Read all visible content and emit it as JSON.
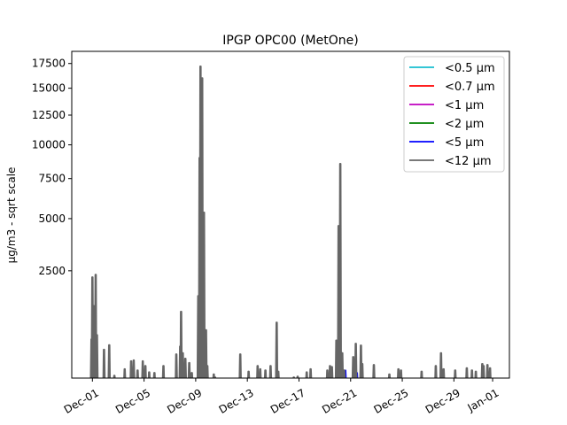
{
  "chart_data": {
    "type": "line",
    "title": "IPGP OPC00 (MetOne)",
    "xlabel": "",
    "ylabel": "µg/m3 - sqrt scale",
    "yscale": "sqrt",
    "ylim": [
      55,
      18800
    ],
    "xlim_days_from_dec01": [
      -1.6,
      32.3
    ],
    "x_unit": "days since Dec-01",
    "x_ticks": [
      {
        "day": 0,
        "label": "Dec-01"
      },
      {
        "day": 4,
        "label": "Dec-05"
      },
      {
        "day": 8,
        "label": "Dec-09"
      },
      {
        "day": 12,
        "label": "Dec-13"
      },
      {
        "day": 16,
        "label": "Dec-17"
      },
      {
        "day": 20,
        "label": "Dec-21"
      },
      {
        "day": 24,
        "label": "Dec-25"
      },
      {
        "day": 28,
        "label": "Dec-29"
      },
      {
        "day": 31,
        "label": "Jan-01"
      }
    ],
    "y_ticks": [
      {
        "value": 2500,
        "label": "2500"
      },
      {
        "value": 5000,
        "label": "5000"
      },
      {
        "value": 7500,
        "label": "7500"
      },
      {
        "value": 10000,
        "label": "10000"
      },
      {
        "value": 12500,
        "label": "12500"
      },
      {
        "value": 15000,
        "label": "15000"
      },
      {
        "value": 17500,
        "label": "17500"
      }
    ],
    "legend_position": "top-right",
    "baseline": 30,
    "series": [
      {
        "name": "<0.5 µm",
        "color": "#17becf",
        "spikes": [
          [
            8.4,
            60
          ]
        ]
      },
      {
        "name": "<0.7 µm",
        "color": "#ff0000",
        "spikes": [
          [
            8.4,
            70
          ]
        ]
      },
      {
        "name": "<1 µm",
        "color": "#bf00bf",
        "spikes": [
          [
            8.4,
            90
          ]
        ]
      },
      {
        "name": "<2 µm",
        "color": "#008000",
        "spikes": [
          [
            8.4,
            200
          ],
          [
            8.6,
            120
          ]
        ]
      },
      {
        "name": "<5 µm",
        "color": "#0000ff",
        "spikes": [
          [
            6.9,
            120
          ],
          [
            7.0,
            260
          ],
          [
            8.4,
            900
          ],
          [
            8.55,
            500
          ],
          [
            19.6,
            110
          ],
          [
            20.5,
            90
          ]
        ]
      },
      {
        "name": "<12 µm",
        "color": "#666666",
        "spikes": [
          [
            -0.07,
            520
          ],
          [
            0.0,
            2250
          ],
          [
            0.1,
            1300
          ],
          [
            0.25,
            2350
          ],
          [
            0.35,
            600
          ],
          [
            0.9,
            350
          ],
          [
            1.3,
            420
          ],
          [
            1.7,
            70
          ],
          [
            2.5,
            120
          ],
          [
            3.0,
            200
          ],
          [
            3.2,
            210
          ],
          [
            3.5,
            110
          ],
          [
            3.9,
            200
          ],
          [
            4.1,
            150
          ],
          [
            4.4,
            95
          ],
          [
            4.8,
            90
          ],
          [
            5.5,
            150
          ],
          [
            6.5,
            285
          ],
          [
            6.8,
            400
          ],
          [
            6.87,
            1140
          ],
          [
            7.0,
            300
          ],
          [
            7.2,
            230
          ],
          [
            7.5,
            180
          ],
          [
            7.7,
            90
          ],
          [
            8.2,
            1600
          ],
          [
            8.3,
            9000
          ],
          [
            8.37,
            17200
          ],
          [
            8.5,
            16000
          ],
          [
            8.64,
            5350
          ],
          [
            8.8,
            700
          ],
          [
            8.9,
            150
          ],
          [
            9.4,
            80
          ],
          [
            9.5,
            60
          ],
          [
            11.45,
            285
          ],
          [
            12.1,
            100
          ],
          [
            12.8,
            150
          ],
          [
            13.0,
            120
          ],
          [
            13.4,
            110
          ],
          [
            13.8,
            150
          ],
          [
            14.27,
            870
          ],
          [
            14.4,
            100
          ],
          [
            15.6,
            60
          ],
          [
            15.9,
            65
          ],
          [
            16.6,
            95
          ],
          [
            16.9,
            120
          ],
          [
            18.2,
            110
          ],
          [
            18.4,
            150
          ],
          [
            18.55,
            140
          ],
          [
            18.9,
            500
          ],
          [
            19.07,
            4600
          ],
          [
            19.2,
            8550
          ],
          [
            19.35,
            300
          ],
          [
            19.5,
            110
          ],
          [
            20.2,
            250
          ],
          [
            20.4,
            445
          ],
          [
            20.8,
            416
          ],
          [
            20.9,
            170
          ],
          [
            21.8,
            160
          ],
          [
            23.0,
            80
          ],
          [
            23.7,
            120
          ],
          [
            23.9,
            110
          ],
          [
            25.5,
            100
          ],
          [
            26.6,
            150
          ],
          [
            27.0,
            300
          ],
          [
            27.2,
            120
          ],
          [
            28.1,
            110
          ],
          [
            29.0,
            130
          ],
          [
            29.4,
            110
          ],
          [
            29.7,
            100
          ],
          [
            30.2,
            170
          ],
          [
            30.3,
            150
          ],
          [
            30.6,
            160
          ],
          [
            30.8,
            130
          ]
        ]
      }
    ]
  }
}
